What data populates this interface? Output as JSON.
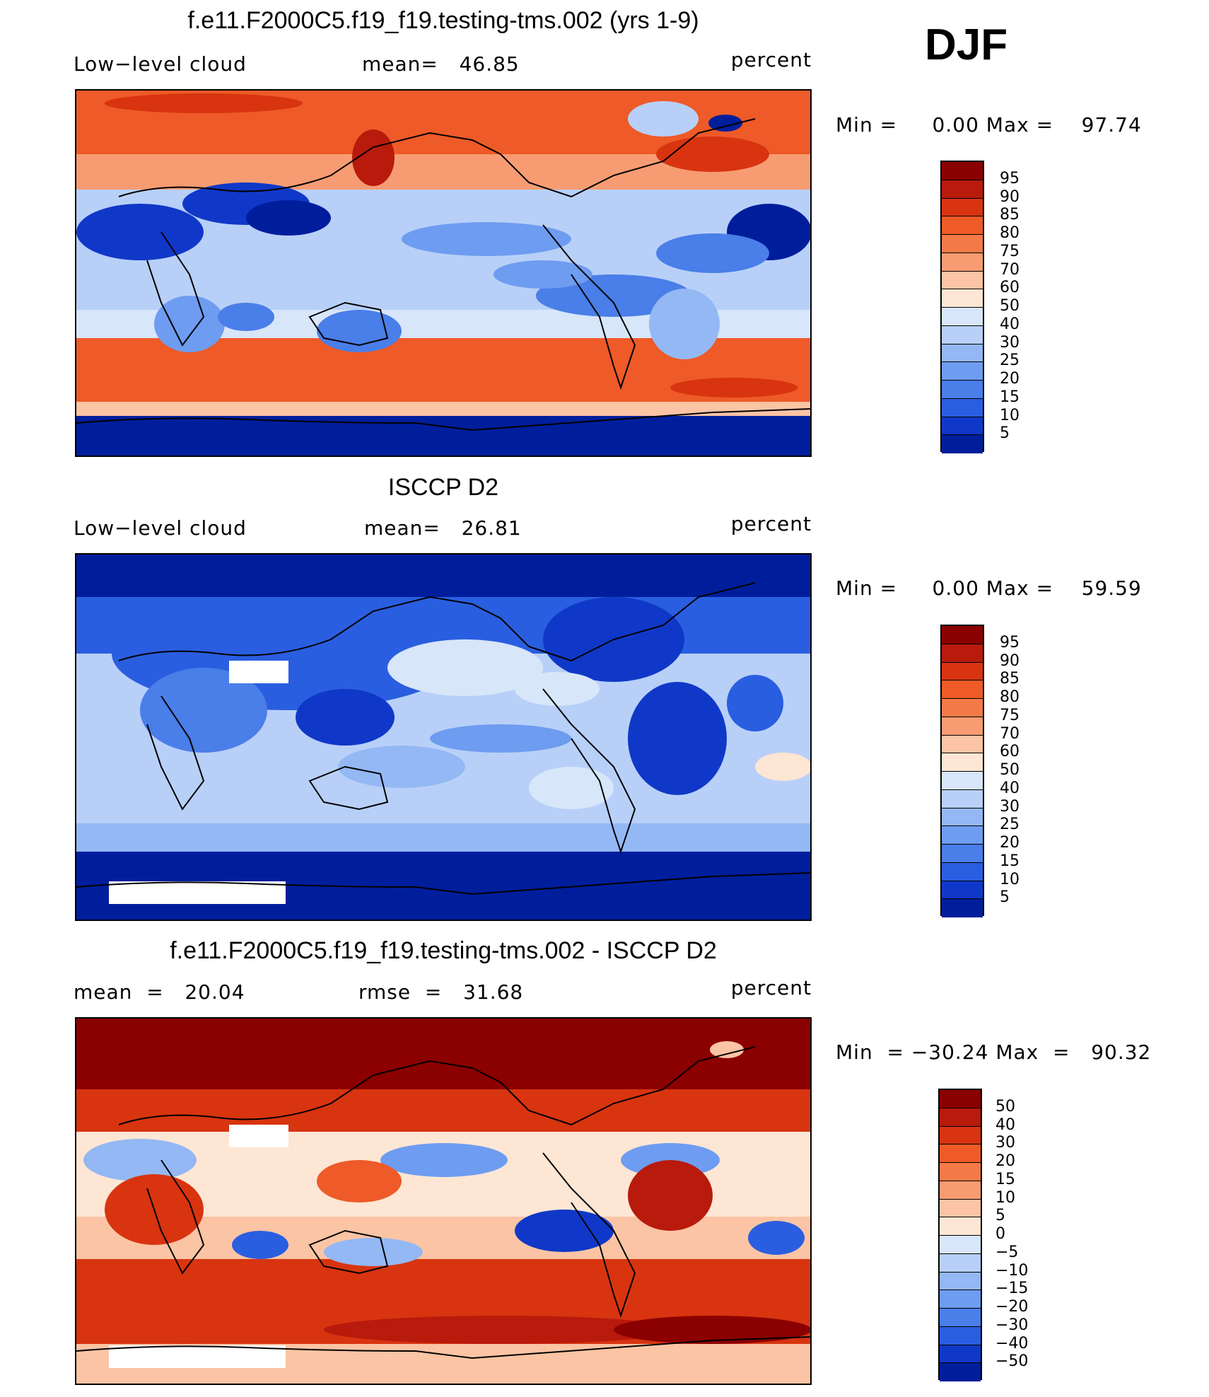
{
  "season": "DJF",
  "panel1": {
    "title": "f.e11.F2000C5.f19_f19.testing-tms.002 (yrs 1-9)",
    "variable": "Low−level cloud",
    "mean_text": "mean=   46.85",
    "units": "percent",
    "minmax": "Min =     0.00 Max =    97.74"
  },
  "panel2": {
    "title": "ISCCP D2",
    "variable": "Low−level cloud",
    "mean_text": "mean=   26.81",
    "units": "percent",
    "minmax": "Min =     0.00 Max =    59.59"
  },
  "panel3": {
    "title": "f.e11.F2000C5.f19_f19.testing-tms.002 - ISCCP D2",
    "mean_text": "mean  =   20.04",
    "rmse_text": "rmse  =   31.68",
    "units": "percent",
    "minmax": "Min  = −30.24 Max  =   90.32"
  },
  "colorbar_abs": {
    "labels": [
      "95",
      "90",
      "85",
      "80",
      "75",
      "70",
      "60",
      "50",
      "40",
      "30",
      "25",
      "20",
      "15",
      "10",
      "5"
    ],
    "colors": [
      "#8b0000",
      "#b81a0c",
      "#d83410",
      "#ee5a28",
      "#f47a48",
      "#f79c72",
      "#fbc4a4",
      "#fde6d4",
      "#d8e6fa",
      "#b8d0f8",
      "#94b8f4",
      "#6e9cf0",
      "#4a7ee8",
      "#2a5ee0",
      "#1038c8",
      "#001e9c"
    ]
  },
  "colorbar_diff": {
    "labels": [
      "50",
      "40",
      "30",
      "20",
      "15",
      "10",
      "5",
      "0",
      "−5",
      "−10",
      "−15",
      "−20",
      "−30",
      "−40",
      "−50"
    ],
    "colors": [
      "#8b0000",
      "#b81a0c",
      "#d83410",
      "#ee5a28",
      "#f47a48",
      "#f79c72",
      "#fbc4a4",
      "#fde6d4",
      "#d8e6fa",
      "#b8d0f8",
      "#94b8f4",
      "#6e9cf0",
      "#4a7ee8",
      "#2a5ee0",
      "#1038c8",
      "#001e9c"
    ]
  }
}
